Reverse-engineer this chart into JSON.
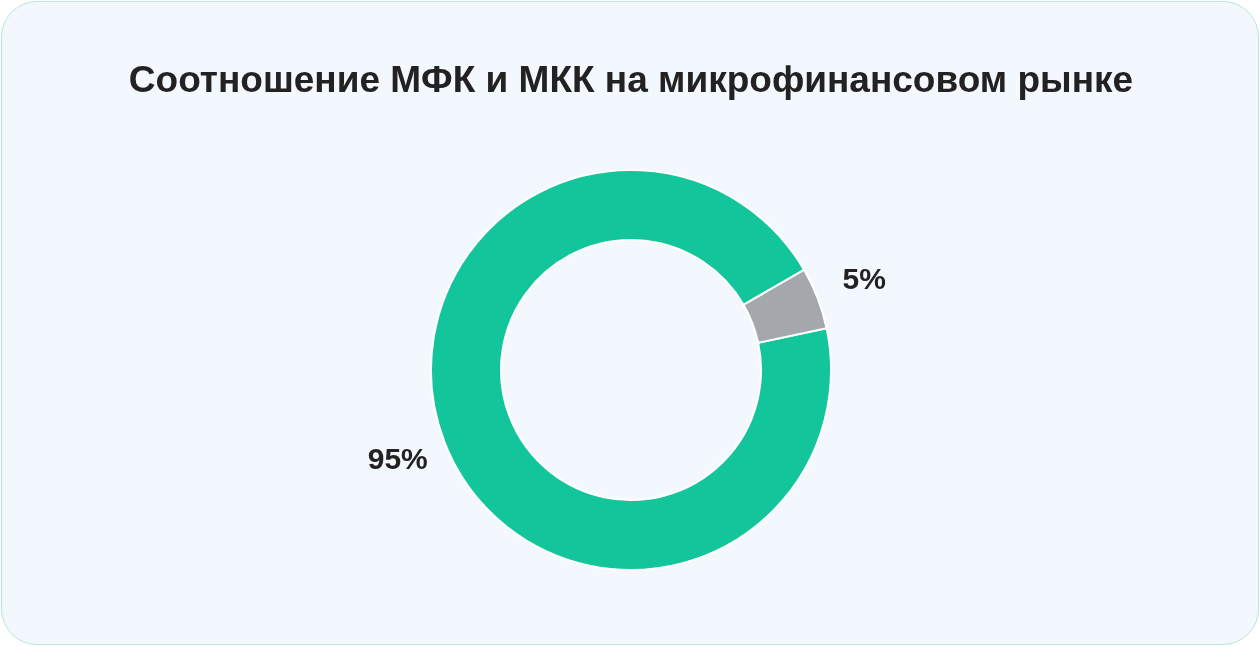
{
  "chart_data": {
    "type": "donut",
    "title": "Соотношение МФК и МКК на микрофинансовом рынке",
    "categories": [
      null,
      null
    ],
    "values": [
      95,
      5
    ],
    "colors": [
      "#13c59b",
      "#a4a7ab"
    ],
    "value_labels": [
      "95%",
      "5%"
    ],
    "legend": false
  }
}
